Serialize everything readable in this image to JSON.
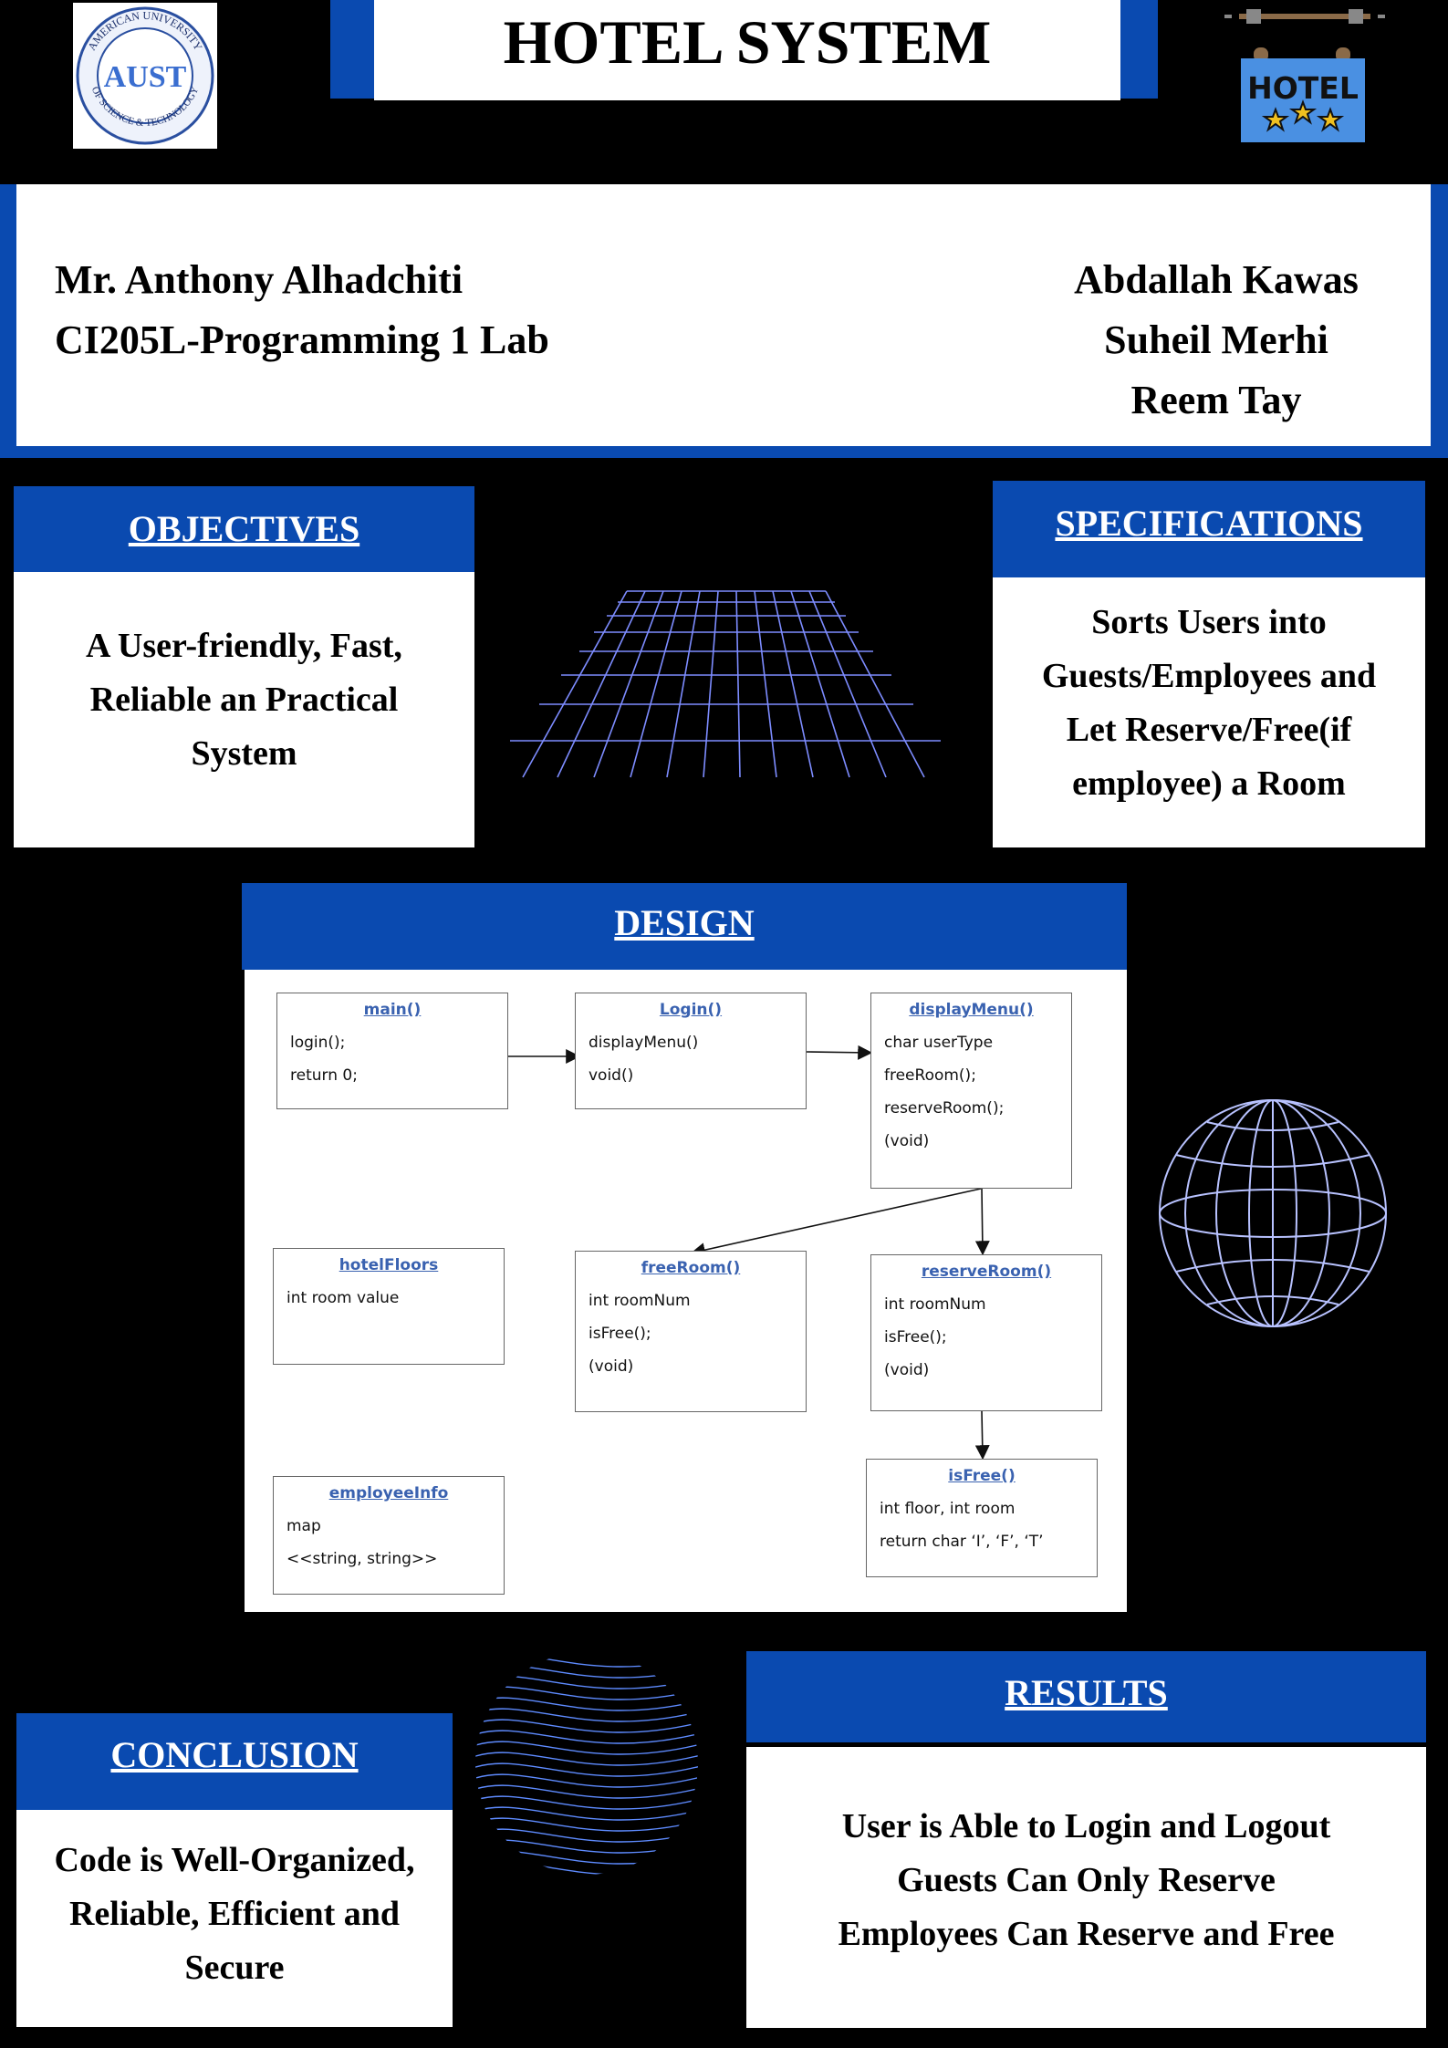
{
  "title": "HOTEL SYSTEM",
  "logo": {
    "name": "AUST",
    "ring_top": "AMERICAN UNIVERSITY",
    "ring_bottom": "OF SCIENCE & TECHNOLOGY"
  },
  "sign": {
    "text": "HOTEL",
    "color": "#4a90e2"
  },
  "instructor": {
    "name": "Mr. Anthony Alhadchiti",
    "course": "CI205L-Programming 1 Lab"
  },
  "authors": [
    "Abdallah Kawas",
    "Suheil Merhi",
    "Reem Tay"
  ],
  "objectives": {
    "heading": "OBJECTIVES",
    "lines": [
      "A User-friendly, Fast,",
      "Reliable an Practical",
      "System"
    ]
  },
  "specifications": {
    "heading": "SPECIFICATIONS",
    "lines": [
      "Sorts  Users into",
      "Guests/Employees and",
      "Let Reserve/Free(if",
      "employee) a Room"
    ]
  },
  "design": {
    "heading": "DESIGN",
    "boxes": [
      {
        "title": "main()",
        "rows": [
          "login();",
          "return 0;"
        ]
      },
      {
        "title": "Login()",
        "rows": [
          "displayMenu()",
          "void()"
        ]
      },
      {
        "title": "displayMenu()",
        "rows": [
          "char userType",
          "freeRoom();",
          "reserveRoom();",
          "(void)"
        ]
      },
      {
        "title": "hotelFloors",
        "rows": [
          "int room value"
        ]
      },
      {
        "title": "freeRoom()",
        "rows": [
          "int roomNum",
          "isFree();",
          "(void)"
        ]
      },
      {
        "title": "reserveRoom()",
        "rows": [
          "int roomNum",
          "isFree();",
          "(void)"
        ]
      },
      {
        "title": "employeeInfo",
        "rows": [
          "map",
          "<<string, string>>"
        ]
      },
      {
        "title": "isFree()",
        "rows": [
          "int floor, int room",
          "return char ‘I’, ‘F’, ‘T’"
        ]
      }
    ]
  },
  "conclusion": {
    "heading": "CONCLUSION",
    "lines": [
      "Code is Well-Organized,",
      "Reliable, Efficient and",
      "Secure"
    ]
  },
  "results": {
    "heading": "RESULTS",
    "lines": [
      "User is Able to Login and Logout",
      "Guests Can Only Reserve",
      "Employees Can Reserve and Free"
    ]
  },
  "colors": {
    "brand_blue": "#0a4ab0",
    "background": "#000000",
    "uml_title": "#3a62b0",
    "line_art": "#b8c2ff"
  }
}
